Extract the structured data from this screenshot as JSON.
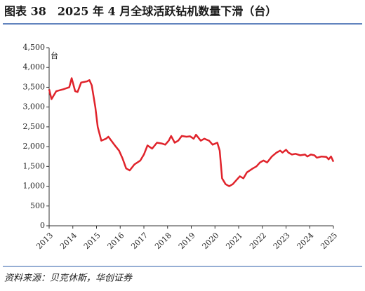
{
  "chart_data": {
    "type": "line",
    "title": "图表 38　2025 年 4 月全球活跃钻机数量下滑（台）",
    "y_label": "台",
    "source": "资料来源：贝克休斯，华创证券",
    "x": [
      2013.0,
      2013.1,
      2013.3,
      2013.6,
      2013.85,
      2013.95,
      2014.1,
      2014.2,
      2014.35,
      2014.6,
      2014.7,
      2014.8,
      2014.95,
      2015.05,
      2015.2,
      2015.4,
      2015.5,
      2015.75,
      2015.95,
      2016.1,
      2016.25,
      2016.4,
      2016.6,
      2016.85,
      2017.0,
      2017.15,
      2017.35,
      2017.55,
      2017.75,
      2017.9,
      2018.05,
      2018.15,
      2018.3,
      2018.45,
      2018.6,
      2018.8,
      2018.95,
      2019.1,
      2019.2,
      2019.4,
      2019.55,
      2019.75,
      2019.9,
      2020.1,
      2020.2,
      2020.3,
      2020.45,
      2020.6,
      2020.75,
      2020.9,
      2021.05,
      2021.2,
      2021.35,
      2021.6,
      2021.75,
      2021.9,
      2022.05,
      2022.2,
      2022.4,
      2022.6,
      2022.75,
      2022.85,
      2023.0,
      2023.1,
      2023.25,
      2023.4,
      2023.6,
      2023.8,
      2023.9,
      2024.05,
      2024.2,
      2024.3,
      2024.5,
      2024.7,
      2024.8,
      2024.9,
      2025.0
    ],
    "series": [
      {
        "name": "全球活跃钻机数量",
        "color": "#e0232b",
        "values": [
          3450,
          3200,
          3400,
          3450,
          3500,
          3730,
          3400,
          3380,
          3620,
          3650,
          3680,
          3550,
          3000,
          2500,
          2150,
          2200,
          2250,
          2050,
          1900,
          1700,
          1450,
          1400,
          1550,
          1650,
          1800,
          2030,
          1950,
          2100,
          2080,
          2050,
          2150,
          2270,
          2100,
          2150,
          2270,
          2250,
          2260,
          2200,
          2300,
          2150,
          2200,
          2150,
          2050,
          2100,
          1900,
          1200,
          1050,
          1000,
          1050,
          1150,
          1250,
          1200,
          1350,
          1450,
          1500,
          1600,
          1650,
          1600,
          1750,
          1850,
          1900,
          1850,
          1920,
          1850,
          1800,
          1820,
          1780,
          1800,
          1750,
          1800,
          1780,
          1720,
          1750,
          1740,
          1680,
          1750,
          1620
        ]
      }
    ],
    "xlim": [
      2013,
      2025
    ],
    "xticks": [
      2013,
      2014,
      2015,
      2016,
      2017,
      2018,
      2019,
      2020,
      2021,
      2022,
      2023,
      2024,
      2025
    ],
    "ylim": [
      0,
      4500
    ],
    "yticks": [
      0,
      500,
      {
        "value": 1000,
        "label": "1,000"
      },
      {
        "value": 1500,
        "label": "1,500"
      },
      {
        "value": 2000,
        "label": "2,000"
      },
      {
        "value": 2500,
        "label": "2,500"
      },
      {
        "value": 3000,
        "label": "3,000"
      },
      {
        "value": 3500,
        "label": "3,500"
      },
      {
        "value": 4000,
        "label": "4,000"
      },
      {
        "value": 4500,
        "label": "4,500"
      }
    ],
    "grid": false
  }
}
